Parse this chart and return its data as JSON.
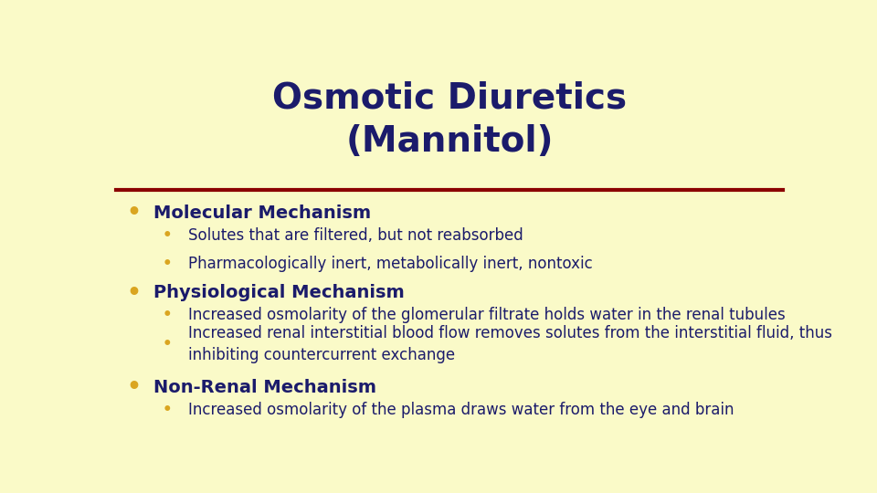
{
  "title": "Osmotic Diuretics\n(Mannitol)",
  "background_color": "#FAFAC8",
  "title_color": "#1B1B6B",
  "title_fontsize": 28,
  "separator_color": "#8B0000",
  "bullet_color": "#DAA520",
  "heading_color": "#1B1B6B",
  "heading_fontsize": 14,
  "sub_bullet_color": "#DAA520",
  "body_color": "#1B1B6B",
  "body_fontsize": 12,
  "content": [
    {
      "type": "heading",
      "text": "Molecular Mechanism"
    },
    {
      "type": "sub",
      "text": "Solutes that are filtered, but not reabsorbed"
    },
    {
      "type": "sub",
      "text": "Pharmacologically inert, metabolically inert, nontoxic"
    },
    {
      "type": "heading",
      "text": "Physiological Mechanism"
    },
    {
      "type": "sub",
      "text": "Increased osmolarity of the glomerular filtrate holds water in the renal tubules"
    },
    {
      "type": "sub",
      "text": "Increased renal interstitial blood flow removes solutes from the interstitial fluid, thus\ninhibiting countercurrent exchange"
    },
    {
      "type": "heading",
      "text": "Non-Renal Mechanism"
    },
    {
      "type": "sub",
      "text": "Increased osmolarity of the plasma draws water from the eye and brain"
    }
  ]
}
